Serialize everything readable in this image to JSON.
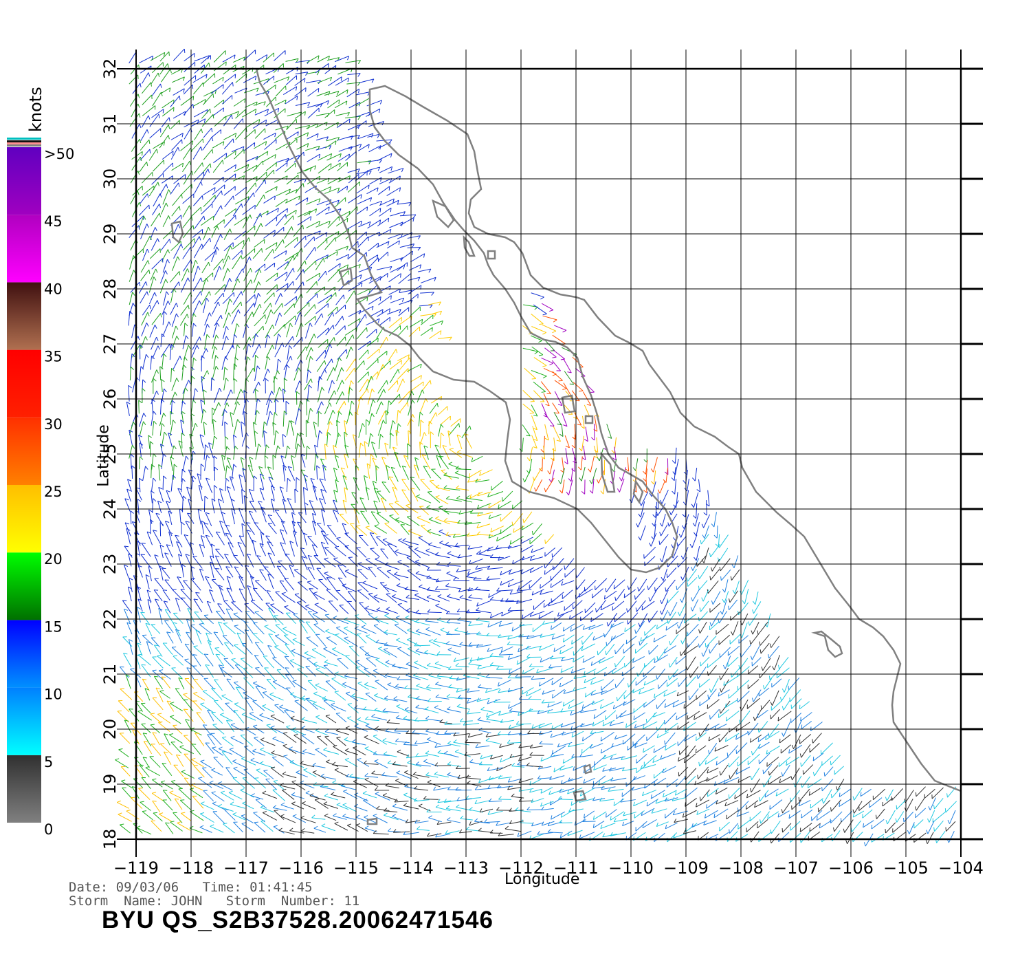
{
  "map": {
    "lon_ticks": [
      "−119",
      "−118",
      "−117",
      "−116",
      "−115",
      "−114",
      "−113",
      "−112",
      "−111",
      "−110",
      "−109",
      "−108",
      "−107",
      "−106",
      "−105",
      "−104"
    ],
    "lat_ticks": [
      "18",
      "19",
      "20",
      "21",
      "22",
      "23",
      "24",
      "25",
      "26",
      "27",
      "28",
      "29",
      "30",
      "31",
      "32"
    ],
    "lon_range": [
      -119,
      -104
    ],
    "lat_range": [
      18,
      32
    ],
    "xlabel": "Longitude",
    "ylabel": "Latitude",
    "grid": true,
    "coastline_color": "#808080",
    "gridline_color": "#000000"
  },
  "colorbar": {
    "units": "knots",
    "labels": [
      ">50",
      "45",
      "40",
      "35",
      "30",
      "25",
      "20",
      "15",
      "10",
      "5",
      "0"
    ],
    "bands": [
      {
        "from": 0,
        "to": 5,
        "colors": [
          "#808080",
          "#303030"
        ]
      },
      {
        "from": 5,
        "to": 10,
        "colors": [
          "#00ffff",
          "#0080ff"
        ]
      },
      {
        "from": 10,
        "to": 15,
        "colors": [
          "#0090ff",
          "#0000ff"
        ]
      },
      {
        "from": 15,
        "to": 20,
        "colors": [
          "#007000",
          "#00ff00"
        ]
      },
      {
        "from": 20,
        "to": 25,
        "colors": [
          "#ffff00",
          "#ffbf00"
        ]
      },
      {
        "from": 25,
        "to": 30,
        "colors": [
          "#ff8000",
          "#ff3000"
        ]
      },
      {
        "from": 30,
        "to": 35,
        "colors": [
          "#ff2000",
          "#ff0000"
        ]
      },
      {
        "from": 35,
        "to": 40,
        "colors": [
          "#b07050",
          "#401010"
        ]
      },
      {
        "from": 40,
        "to": 45,
        "colors": [
          "#ff00ff",
          "#b000c0"
        ]
      },
      {
        "from": 45,
        "to": 50,
        "colors": [
          "#a000c0",
          "#6000c0"
        ]
      }
    ]
  },
  "header": {
    "date_line": "Date: 09/03/06   Time: 01:41:45",
    "storm_line": "Storm  Name: JOHN   Storm  Number: 11"
  },
  "product_id": "BYU  QS_S2B37528.20062471546"
}
